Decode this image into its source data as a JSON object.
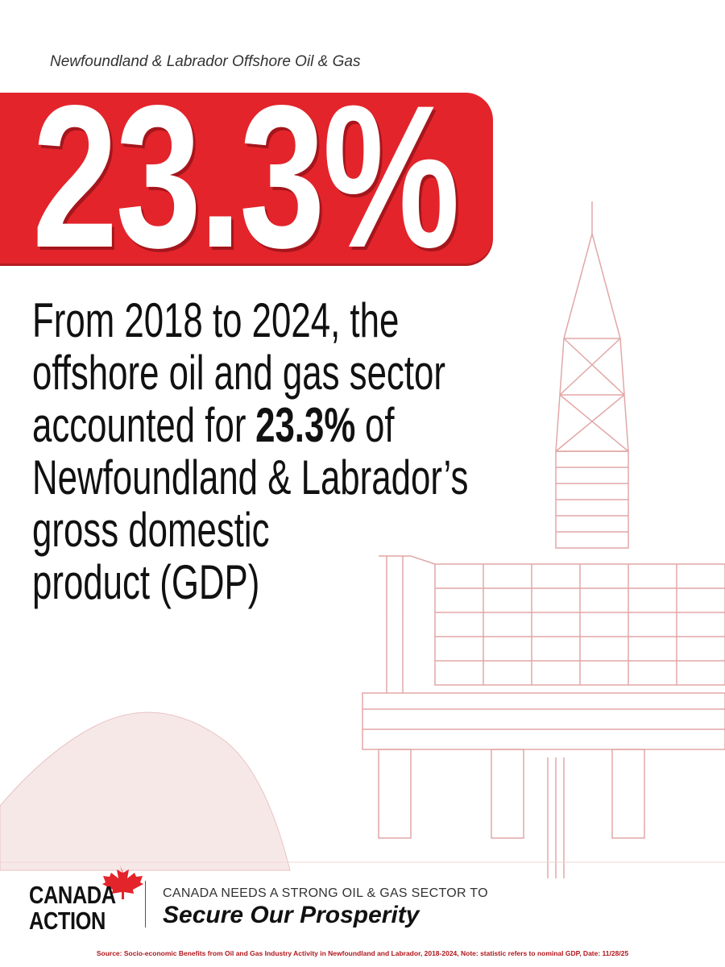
{
  "header": {
    "subtitle": "Newfoundland & Labrador Offshore Oil & Gas"
  },
  "banner": {
    "stat": "23.3%"
  },
  "body": {
    "line1": "From 2018 to 2024, the",
    "line2": "offshore oil and gas sector",
    "line3": {
      "before": "accounted for",
      "highlight": "23.3%",
      "after": "of"
    },
    "line4": "Newfoundland & Labrador’s",
    "line5": "gross domestic",
    "line6": "product (GDP)"
  },
  "logo": {
    "line1": "CANADA",
    "line2": "ACTION"
  },
  "tagline": {
    "top": "CANADA NEEDS A STRONG OIL & GAS SECTOR TO",
    "main": "Secure Our Prosperity"
  },
  "footer": {
    "source": "Source: Socio-economic Benefits from Oil and Gas Industry Activity in Newfoundland and Labrador, 2018-2024, Note: statistic refers to nominal GDP, Date: 11/28/25"
  }
}
